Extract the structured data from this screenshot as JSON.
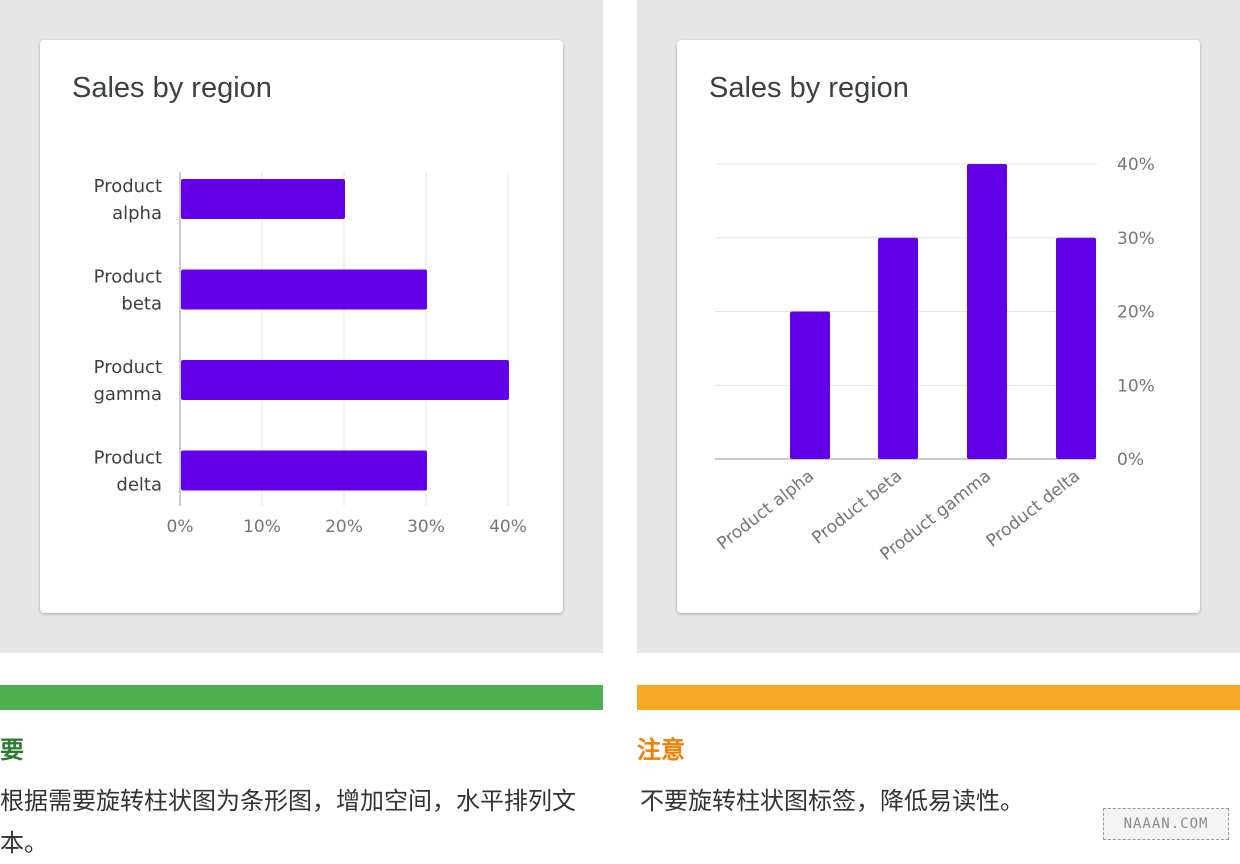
{
  "left_example": {
    "card_title": "Sales by region",
    "verdict": "要",
    "accent_color": "#4caf50",
    "verdict_color": "#2e7d32",
    "description": "根据需要旋转柱状图为条形图，增加空间，水平排列文本。"
  },
  "right_example": {
    "card_title": "Sales by region",
    "verdict": "注意",
    "accent_color": "#f9a825",
    "verdict_color": "#f57c00",
    "description": "不要旋转柱状图标签，降低易读性。"
  },
  "watermark": "NAAAN.COM",
  "chart_data": [
    {
      "type": "bar",
      "orientation": "horizontal",
      "title": "Sales by region",
      "categories": [
        [
          "Product",
          "alpha"
        ],
        [
          "Product",
          "beta"
        ],
        [
          "Product",
          "gamma"
        ],
        [
          "Product",
          "delta"
        ]
      ],
      "values": [
        20,
        30,
        40,
        30
      ],
      "xlim": [
        0,
        40
      ],
      "tick_labels": [
        "0%",
        "10%",
        "20%",
        "30%",
        "40%"
      ],
      "grid": true,
      "bar_color": "#6200ea"
    },
    {
      "type": "bar",
      "orientation": "vertical",
      "title": "Sales by region",
      "categories": [
        "Product alpha",
        "Product beta",
        "Product gamma",
        "Product delta"
      ],
      "values": [
        20,
        30,
        40,
        30
      ],
      "ylim": [
        0,
        40
      ],
      "tick_labels": [
        "0%",
        "10%",
        "20%",
        "30%",
        "40%"
      ],
      "y_axis_side": "right",
      "x_label_rotation": "rotated",
      "grid": true,
      "bar_color": "#6200ea"
    }
  ]
}
